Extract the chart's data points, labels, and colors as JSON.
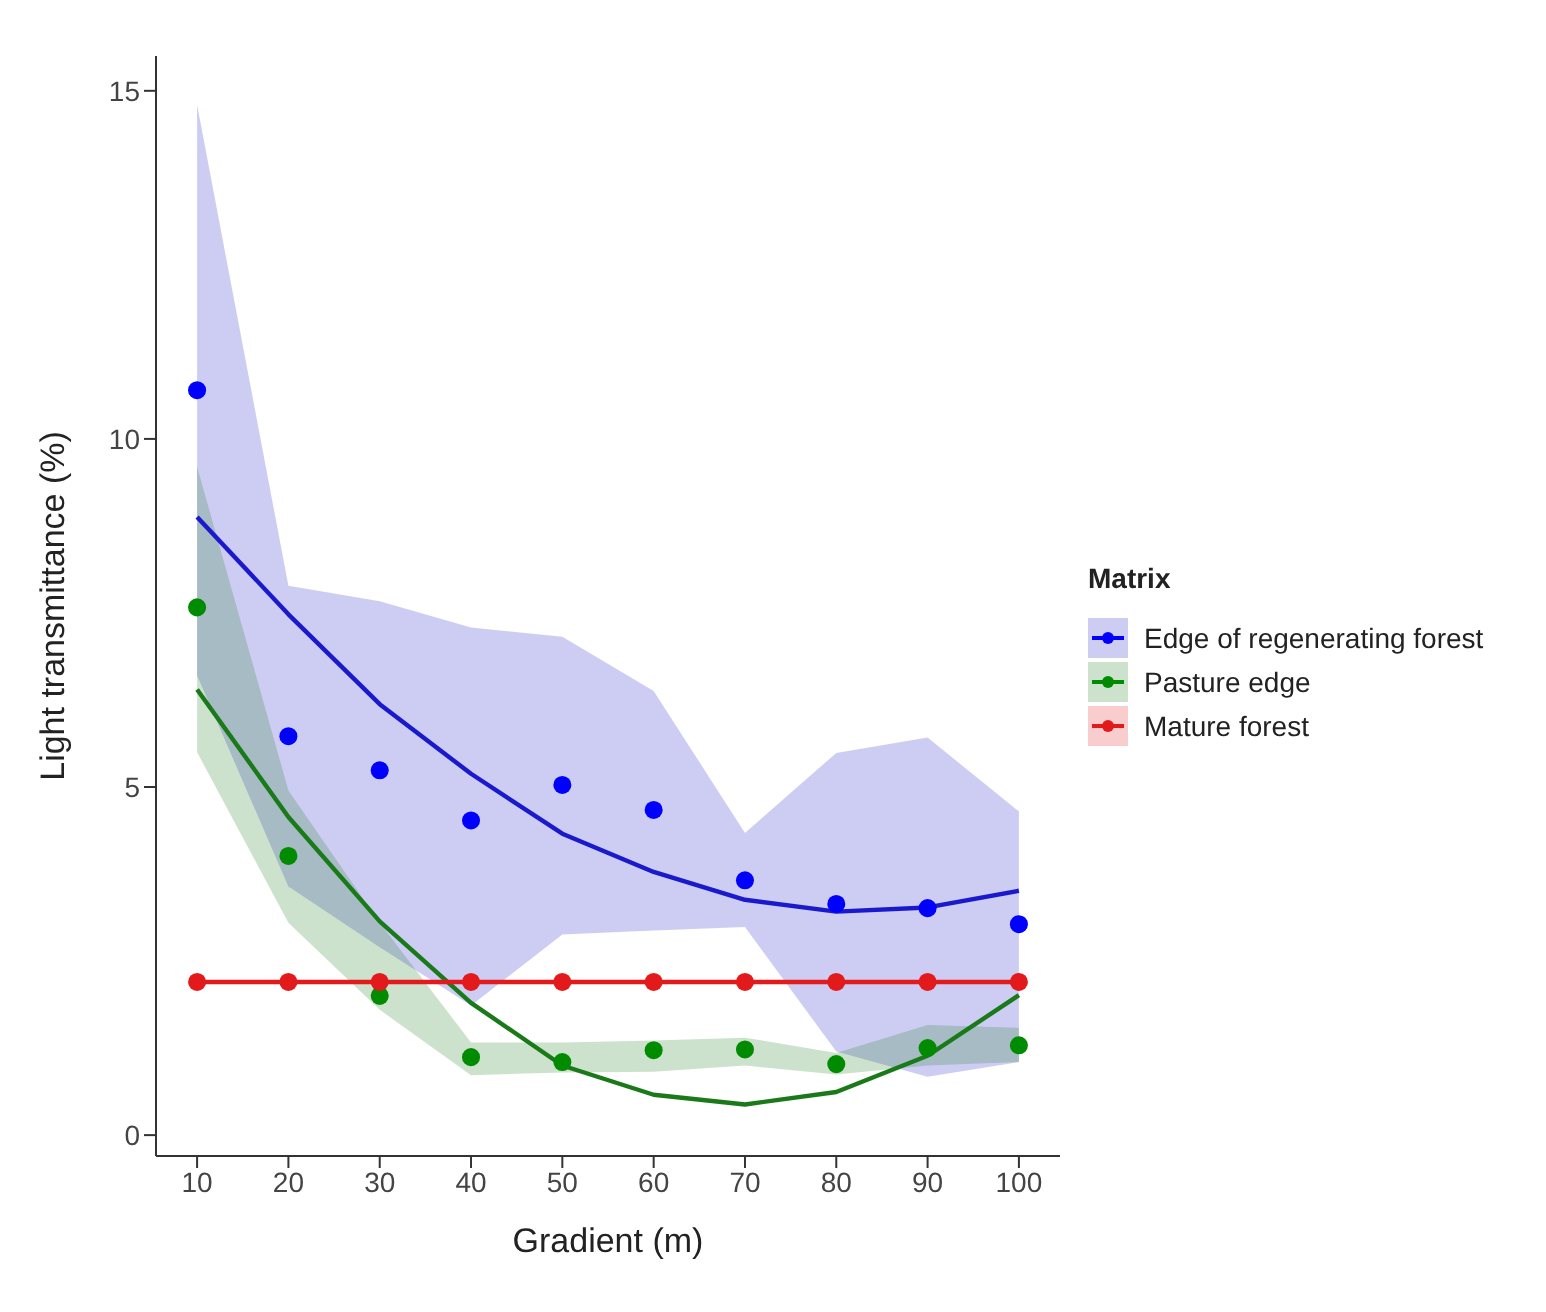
{
  "chart_data": {
    "type": "line",
    "xlabel": "Gradient (m)",
    "ylabel": "Light transmittance (%)",
    "legend_title": "Matrix",
    "x": [
      10,
      20,
      30,
      40,
      50,
      60,
      70,
      80,
      90,
      100
    ],
    "series": [
      {
        "name": "Edge of regenerating forest",
        "type": "scatter",
        "color": "#0000ff",
        "values": [
          10.7,
          5.73,
          5.24,
          4.52,
          5.03,
          4.67,
          3.66,
          3.32,
          3.26,
          3.03
        ]
      },
      {
        "name": "Pasture edge",
        "type": "scatter",
        "color": "#008b00",
        "values": [
          7.58,
          4.01,
          2.0,
          1.12,
          1.05,
          1.22,
          1.23,
          1.02,
          1.25,
          1.29
        ]
      },
      {
        "name": "Mature forest",
        "type": "scatter",
        "color": "#e31a1c",
        "values": [
          2.2,
          2.2,
          2.2,
          2.2,
          2.2,
          2.2,
          2.2,
          2.2,
          2.2,
          2.2
        ]
      },
      {
        "marker": "none",
        "color": "#1a1acc",
        "values": [
          8.88,
          7.48,
          6.19,
          5.19,
          4.33,
          3.78,
          3.38,
          3.21,
          3.27,
          3.51
        ],
        "lower": [
          6.6,
          3.57,
          2.7,
          1.86,
          2.88,
          2.94,
          2.99,
          1.2,
          0.84,
          1.05
        ],
        "upper": [
          14.8,
          7.89,
          7.67,
          7.29,
          7.16,
          6.38,
          4.34,
          5.49,
          5.71,
          4.65
        ]
      },
      {
        "marker": "none",
        "color": "#1a7a1a",
        "values": [
          6.4,
          4.57,
          3.07,
          1.9,
          1.0,
          0.58,
          0.44,
          0.62,
          1.14,
          2.01
        ],
        "lower": [
          5.5,
          3.05,
          1.8,
          0.86,
          0.9,
          0.91,
          1.0,
          0.87,
          1.0,
          1.05
        ],
        "upper": [
          9.6,
          4.95,
          3.05,
          1.33,
          1.33,
          1.36,
          1.4,
          1.18,
          1.58,
          1.54
        ]
      },
      {
        "marker": "none",
        "color": "#e31a1c",
        "values": [
          2.2,
          2.2,
          2.2,
          2.2,
          2.2,
          2.2,
          2.2,
          2.2,
          2.2,
          2.2
        ]
      }
    ],
    "xlim": [
      5.5,
      104.5
    ],
    "xticks": [
      10,
      20,
      30,
      40,
      50,
      60,
      70,
      80,
      90,
      100
    ],
    "ylim": [
      -0.3,
      15.5
    ],
    "yticks": [
      0,
      5,
      10,
      15
    ],
    "grid": false,
    "legend": "right",
    "marker": "circle",
    "line_style": "solid"
  }
}
